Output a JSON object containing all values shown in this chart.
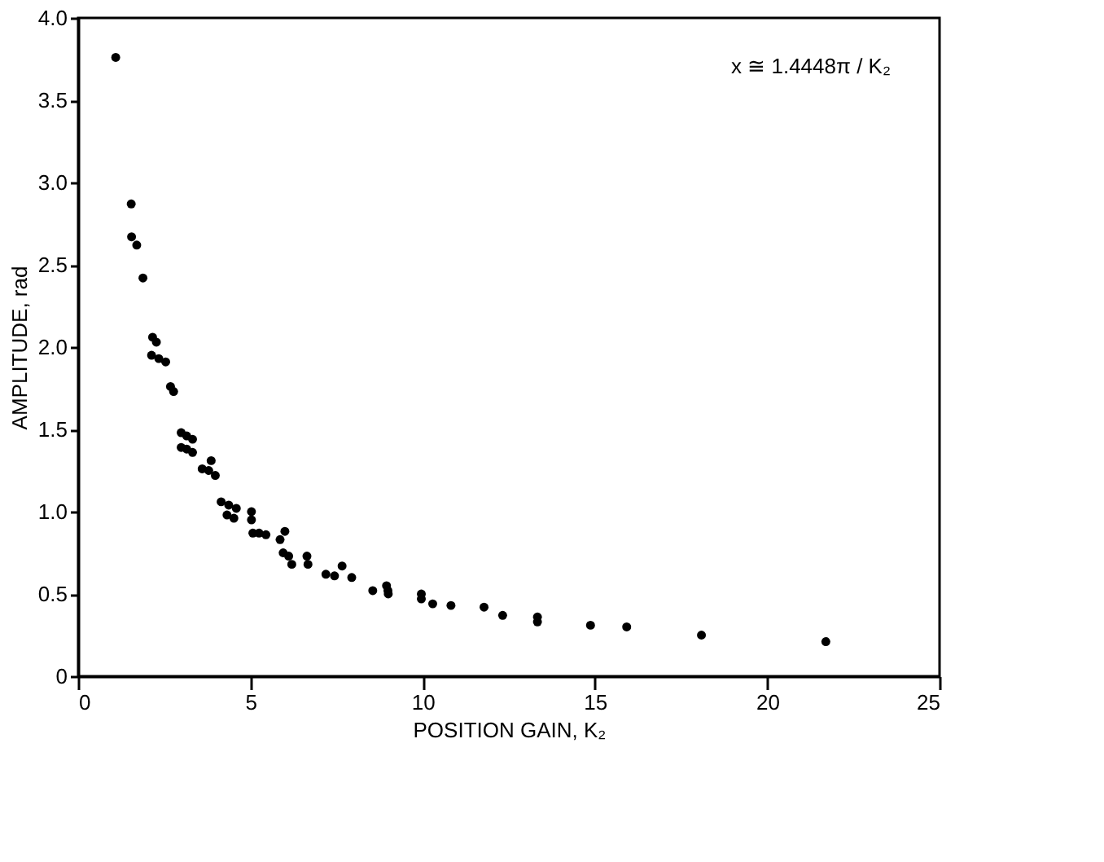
{
  "chart_data": {
    "type": "scatter",
    "xlabel": "POSITION GAIN, K₂",
    "ylabel": "AMPLITUDE, rad",
    "annotations": [
      "x ≅ 1.4448π / K₂"
    ],
    "x": [
      1.09,
      1.54,
      1.55,
      1.7,
      1.88,
      2.16,
      2.27,
      2.13,
      2.34,
      2.54,
      2.68,
      2.77,
      2.99,
      3.15,
      3.32,
      2.99,
      3.15,
      3.32,
      3.6,
      3.79,
      3.98,
      3.86,
      4.15,
      4.37,
      4.59,
      4.32,
      4.52,
      5.03,
      5.03,
      5.07,
      5.25,
      5.45,
      6.0,
      5.86,
      5.95,
      6.11,
      6.2,
      6.64,
      6.67,
      7.19,
      7.44,
      7.66,
      7.94,
      8.55,
      8.95,
      8.99,
      9.0,
      9.96,
      9.96,
      10.29,
      10.82,
      11.78,
      12.32,
      13.33,
      13.33,
      14.87,
      15.92,
      18.09,
      21.7
    ],
    "values": [
      3.76,
      2.87,
      2.67,
      2.62,
      2.42,
      2.06,
      2.03,
      1.95,
      1.93,
      1.91,
      1.76,
      1.73,
      1.48,
      1.46,
      1.44,
      1.39,
      1.38,
      1.36,
      1.26,
      1.25,
      1.22,
      1.31,
      1.06,
      1.04,
      1.02,
      0.98,
      0.96,
      1.0,
      0.95,
      0.87,
      0.87,
      0.86,
      0.88,
      0.83,
      0.75,
      0.73,
      0.68,
      0.73,
      0.68,
      0.62,
      0.61,
      0.67,
      0.6,
      0.52,
      0.55,
      0.52,
      0.5,
      0.5,
      0.47,
      0.44,
      0.43,
      0.42,
      0.37,
      0.36,
      0.33,
      0.31,
      0.3,
      0.25,
      0.21
    ],
    "color": "#000000",
    "marker": "circle",
    "grid": false,
    "xlim": [
      0,
      25
    ],
    "xticks": [
      0,
      5,
      10,
      15,
      20,
      25
    ],
    "ylim": [
      0,
      4
    ],
    "yticks": [
      0,
      {
        "value": 0.5,
        "label": "0.5"
      },
      {
        "value": 1,
        "label": "1.0"
      },
      {
        "value": 1.5,
        "label": "1.5"
      },
      {
        "value": 2,
        "label": "2.0"
      },
      {
        "value": 2.5,
        "label": "2.5"
      },
      {
        "value": 3,
        "label": "3.0"
      },
      {
        "value": 3.5,
        "label": "3.5"
      },
      {
        "value": 4,
        "label": "4.0"
      }
    ]
  }
}
